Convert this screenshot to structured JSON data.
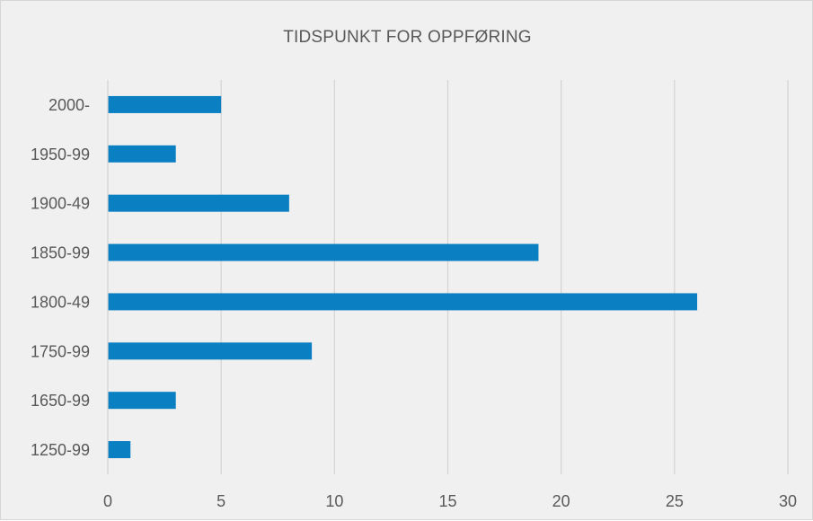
{
  "chart_data": {
    "type": "bar",
    "orientation": "horizontal",
    "title": "TIDSPUNKT FOR OPPFØRING",
    "categories": [
      "2000-",
      "1950-99",
      "1900-49",
      "1850-99",
      "1800-49",
      "1750-99",
      "1650-99",
      "1250-99"
    ],
    "values": [
      5,
      3,
      8,
      19,
      26,
      9,
      3,
      1
    ],
    "xlim": [
      0,
      30
    ],
    "xticks": [
      0,
      5,
      10,
      15,
      20,
      25,
      30
    ],
    "grid": true,
    "legend": "none",
    "bar_color": "#0a7fc2",
    "grid_color": "#d3d3d3",
    "background": "#f0f0f0"
  }
}
